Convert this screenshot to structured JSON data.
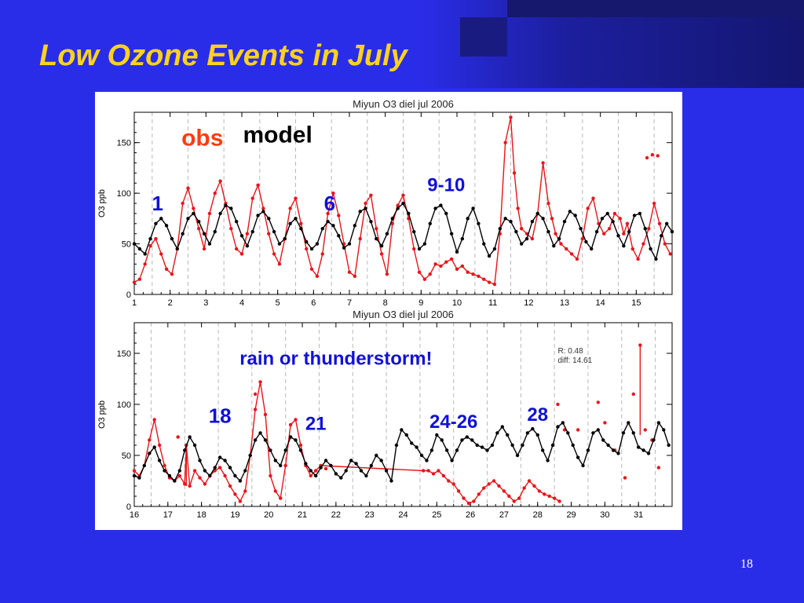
{
  "slide": {
    "title": "Low Ozone Events in July",
    "page_number": "18"
  },
  "colors": {
    "obs": "#e8141b",
    "model": "#000000",
    "annotation_blue": "#1010d8",
    "obs_label": "#ff3b10"
  },
  "chart_data": [
    {
      "type": "line",
      "title": "Miyun O3  diel jul 2006",
      "ylabel": "O3 ppb",
      "xlim": [
        1,
        16
      ],
      "ylim": [
        0,
        180
      ],
      "x_ticks": [
        1,
        2,
        3,
        4,
        5,
        6,
        7,
        8,
        9,
        10,
        11,
        12,
        13,
        14,
        15
      ],
      "y_ticks": [
        0,
        50,
        100,
        150
      ],
      "grid": "vertical dashed",
      "annotations": [
        {
          "text": "obs",
          "x": 2.9,
          "y": 147,
          "color": "obs_label"
        },
        {
          "text": "model",
          "x": 5.0,
          "y": 150,
          "color": "model"
        },
        {
          "text": "1",
          "x": 1.65,
          "y": 83,
          "color": "annotation_blue"
        },
        {
          "text": "6",
          "x": 6.45,
          "y": 83,
          "color": "annotation_blue"
        },
        {
          "text": "9-10",
          "x": 9.7,
          "y": 102,
          "color": "annotation_blue"
        }
      ],
      "series": [
        {
          "role": "obs",
          "x": [
            1.0,
            1.15,
            1.3,
            1.45,
            1.6,
            1.75,
            1.9,
            2.05,
            2.2,
            2.35,
            2.5,
            2.65,
            2.8,
            2.95,
            3.1,
            3.25,
            3.4,
            3.55,
            3.7,
            3.85,
            4.0,
            4.15,
            4.3,
            4.45,
            4.6,
            4.75,
            4.9,
            5.05,
            5.2,
            5.35,
            5.5,
            5.65,
            5.8,
            5.95,
            6.1,
            6.25,
            6.4,
            6.55,
            6.7,
            6.85,
            7.0,
            7.15,
            7.3,
            7.45,
            7.6,
            7.75,
            7.9,
            8.05,
            8.2,
            8.35,
            8.5,
            8.65,
            8.8,
            8.95,
            9.1,
            9.25,
            9.4,
            9.55,
            9.7,
            9.85,
            10.0,
            10.15,
            10.3,
            10.45,
            10.6,
            10.75,
            10.9,
            11.05,
            11.2,
            11.35,
            11.5,
            11.6,
            11.7,
            11.8,
            11.95,
            12.1,
            12.25,
            12.4,
            12.55,
            12.65,
            12.75,
            12.9,
            13.05,
            13.2,
            13.35,
            13.5,
            13.65,
            13.8,
            13.95,
            14.1,
            14.25,
            14.4,
            14.55,
            14.65,
            14.75,
            14.9,
            15.05,
            15.2,
            15.35,
            15.5,
            15.65,
            15.8,
            15.95
          ],
          "y": [
            12,
            15,
            30,
            48,
            55,
            40,
            25,
            20,
            45,
            90,
            105,
            85,
            65,
            45,
            80,
            100,
            112,
            90,
            65,
            45,
            40,
            60,
            95,
            108,
            85,
            60,
            40,
            30,
            55,
            85,
            95,
            70,
            45,
            25,
            18,
            40,
            80,
            100,
            78,
            50,
            22,
            18,
            55,
            90,
            98,
            65,
            40,
            20,
            70,
            88,
            98,
            75,
            45,
            22,
            15,
            20,
            30,
            28,
            32,
            35,
            25,
            28,
            22,
            20,
            18,
            15,
            12,
            10,
            60,
            150,
            175,
            120,
            85,
            65,
            60,
            55,
            80,
            130,
            90,
            75,
            60,
            50,
            45,
            40,
            35,
            55,
            85,
            95,
            70,
            60,
            65,
            80,
            75,
            60,
            70,
            45,
            35,
            50,
            65,
            90,
            70,
            50,
            40
          ],
          "extra_points": [
            {
              "x": 15.3,
              "y": 135
            },
            {
              "x": 15.45,
              "y": 138
            },
            {
              "x": 15.6,
              "y": 137
            }
          ]
        },
        {
          "role": "model",
          "x": [
            1.0,
            1.15,
            1.3,
            1.45,
            1.6,
            1.75,
            1.9,
            2.05,
            2.2,
            2.35,
            2.5,
            2.65,
            2.8,
            2.95,
            3.1,
            3.25,
            3.4,
            3.55,
            3.7,
            3.85,
            4.0,
            4.15,
            4.3,
            4.45,
            4.6,
            4.75,
            4.9,
            5.05,
            5.2,
            5.35,
            5.5,
            5.65,
            5.8,
            5.95,
            6.1,
            6.25,
            6.4,
            6.55,
            6.7,
            6.85,
            7.0,
            7.15,
            7.3,
            7.45,
            7.6,
            7.75,
            7.9,
            8.05,
            8.2,
            8.35,
            8.5,
            8.65,
            8.8,
            8.95,
            9.1,
            9.25,
            9.4,
            9.55,
            9.7,
            9.85,
            10.0,
            10.15,
            10.3,
            10.45,
            10.6,
            10.75,
            10.9,
            11.05,
            11.2,
            11.35,
            11.5,
            11.65,
            11.8,
            11.95,
            12.1,
            12.25,
            12.4,
            12.55,
            12.7,
            12.85,
            13.0,
            13.15,
            13.3,
            13.45,
            13.6,
            13.75,
            13.9,
            14.05,
            14.2,
            14.35,
            14.5,
            14.65,
            14.8,
            14.95,
            15.1,
            15.25,
            15.4,
            15.55,
            15.7,
            15.85,
            16.0
          ],
          "y": [
            50,
            45,
            40,
            55,
            70,
            75,
            68,
            55,
            45,
            60,
            75,
            80,
            72,
            60,
            50,
            62,
            80,
            88,
            85,
            72,
            58,
            48,
            62,
            78,
            82,
            75,
            62,
            50,
            55,
            70,
            75,
            65,
            52,
            45,
            50,
            65,
            72,
            68,
            58,
            46,
            50,
            68,
            82,
            85,
            72,
            55,
            48,
            60,
            75,
            85,
            90,
            80,
            62,
            45,
            50,
            70,
            85,
            88,
            80,
            60,
            42,
            55,
            75,
            85,
            70,
            50,
            38,
            45,
            65,
            75,
            72,
            62,
            50,
            55,
            72,
            80,
            75,
            62,
            48,
            55,
            72,
            82,
            78,
            65,
            52,
            45,
            62,
            75,
            80,
            72,
            58,
            48,
            62,
            78,
            80,
            65,
            45,
            35,
            58,
            70,
            62
          ]
        }
      ]
    },
    {
      "type": "line",
      "title": "Miyun O3  diel jul 2006",
      "ylabel": "O3 ppb",
      "xlim": [
        16,
        32
      ],
      "ylim": [
        0,
        180
      ],
      "x_ticks": [
        16,
        17,
        18,
        19,
        20,
        21,
        22,
        23,
        24,
        25,
        26,
        27,
        28,
        29,
        30,
        31
      ],
      "y_ticks": [
        0,
        50,
        100,
        150
      ],
      "grid": "vertical dashed",
      "stats": [
        "R: 0.48",
        "diff: 14.61"
      ],
      "annotations": [
        {
          "text": "rain or thunderstorm!",
          "x": 22.0,
          "y": 139,
          "color": "annotation_blue"
        },
        {
          "text": "18",
          "x": 18.55,
          "y": 82,
          "color": "annotation_blue"
        },
        {
          "text": "21",
          "x": 21.4,
          "y": 75,
          "color": "annotation_blue"
        },
        {
          "text": "24-26",
          "x": 25.5,
          "y": 77,
          "color": "annotation_blue"
        },
        {
          "text": "28",
          "x": 28.0,
          "y": 84,
          "color": "annotation_blue"
        }
      ],
      "series": [
        {
          "role": "obs",
          "x": [
            16.0,
            16.15,
            16.3,
            16.45,
            16.6,
            16.75,
            16.9,
            17.05,
            17.2,
            17.35,
            17.5,
            17.55,
            17.65,
            17.8,
            17.95,
            18.1,
            18.25,
            18.4,
            18.55,
            18.7,
            18.85,
            19.0,
            19.15,
            19.3,
            19.45,
            19.6,
            19.75,
            19.9,
            20.05,
            20.2,
            20.35,
            20.5,
            20.65,
            20.8,
            20.95,
            21.1,
            21.25,
            21.4,
            21.55,
            24.6,
            24.75,
            24.9,
            25.05,
            25.2,
            25.35,
            25.5,
            25.65,
            25.8,
            25.95,
            26.1,
            26.25,
            26.4,
            26.55,
            26.7,
            26.85,
            27.0,
            27.15,
            27.3,
            27.45,
            27.6,
            27.75,
            27.9,
            28.05,
            28.2,
            28.35,
            28.5,
            28.65
          ],
          "y": [
            35,
            30,
            40,
            65,
            85,
            60,
            40,
            28,
            25,
            30,
            22,
            60,
            20,
            35,
            28,
            22,
            30,
            35,
            38,
            30,
            20,
            12,
            5,
            15,
            50,
            95,
            122,
            90,
            30,
            15,
            8,
            40,
            80,
            85,
            60,
            40,
            30,
            35,
            40,
            35,
            35,
            32,
            35,
            30,
            25,
            22,
            15,
            8,
            3,
            5,
            12,
            18,
            22,
            25,
            20,
            15,
            10,
            5,
            8,
            18,
            25,
            20,
            15,
            12,
            10,
            8,
            5
          ],
          "extra_points": [
            {
              "x": 17.3,
              "y": 68
            },
            {
              "x": 19.6,
              "y": 110
            },
            {
              "x": 21.7,
              "y": 37
            },
            {
              "x": 28.6,
              "y": 100
            },
            {
              "x": 28.8,
              "y": 75
            },
            {
              "x": 29.2,
              "y": 75
            },
            {
              "x": 29.5,
              "y": 55
            },
            {
              "x": 29.8,
              "y": 102
            },
            {
              "x": 30.0,
              "y": 82
            },
            {
              "x": 30.3,
              "y": 55
            },
            {
              "x": 30.6,
              "y": 28
            },
            {
              "x": 30.85,
              "y": 110
            },
            {
              "x": 31.2,
              "y": 75
            },
            {
              "x": 31.4,
              "y": 65
            },
            {
              "x": 31.6,
              "y": 38
            }
          ],
          "spikes": [
            {
              "x": 17.55,
              "y0": 20,
              "y1": 60
            },
            {
              "x": 31.05,
              "y0": 70,
              "y1": 158
            }
          ]
        },
        {
          "role": "model",
          "x": [
            16.0,
            16.15,
            16.3,
            16.45,
            16.6,
            16.75,
            16.9,
            17.05,
            17.2,
            17.35,
            17.5,
            17.65,
            17.8,
            17.95,
            18.1,
            18.25,
            18.4,
            18.55,
            18.7,
            18.85,
            19.0,
            19.15,
            19.3,
            19.45,
            19.6,
            19.75,
            19.9,
            20.05,
            20.2,
            20.35,
            20.5,
            20.65,
            20.8,
            20.95,
            21.1,
            21.25,
            21.4,
            21.55,
            21.7,
            21.85,
            22.0,
            22.15,
            22.3,
            22.45,
            22.6,
            22.75,
            22.9,
            23.05,
            23.2,
            23.35,
            23.5,
            23.65,
            23.8,
            23.95,
            24.1,
            24.25,
            24.4,
            24.55,
            24.7,
            24.85,
            25.0,
            25.15,
            25.3,
            25.45,
            25.6,
            25.75,
            25.9,
            26.05,
            26.2,
            26.35,
            26.5,
            26.65,
            26.8,
            26.95,
            27.1,
            27.25,
            27.4,
            27.55,
            27.7,
            27.85,
            28.0,
            28.15,
            28.3,
            28.45,
            28.6,
            28.75,
            28.9,
            29.05,
            29.2,
            29.35,
            29.5,
            29.65,
            29.8,
            29.95,
            30.1,
            30.25,
            30.4,
            30.55,
            30.7,
            30.85,
            31.0,
            31.15,
            31.3,
            31.45,
            31.6,
            31.75,
            31.9
          ],
          "y": [
            30,
            28,
            40,
            52,
            58,
            45,
            35,
            30,
            25,
            35,
            55,
            68,
            60,
            45,
            35,
            30,
            38,
            48,
            45,
            38,
            30,
            25,
            35,
            50,
            65,
            72,
            65,
            55,
            45,
            40,
            55,
            68,
            65,
            55,
            42,
            35,
            30,
            38,
            45,
            40,
            32,
            28,
            35,
            45,
            42,
            35,
            30,
            40,
            50,
            45,
            35,
            25,
            60,
            75,
            70,
            62,
            58,
            50,
            45,
            55,
            70,
            65,
            55,
            45,
            55,
            65,
            68,
            65,
            60,
            58,
            55,
            60,
            72,
            78,
            70,
            60,
            50,
            60,
            72,
            76,
            70,
            55,
            45,
            60,
            78,
            82,
            72,
            60,
            48,
            40,
            55,
            72,
            75,
            65,
            60,
            55,
            52,
            72,
            82,
            72,
            58,
            55,
            52,
            65,
            82,
            75,
            60
          ]
        }
      ]
    }
  ]
}
